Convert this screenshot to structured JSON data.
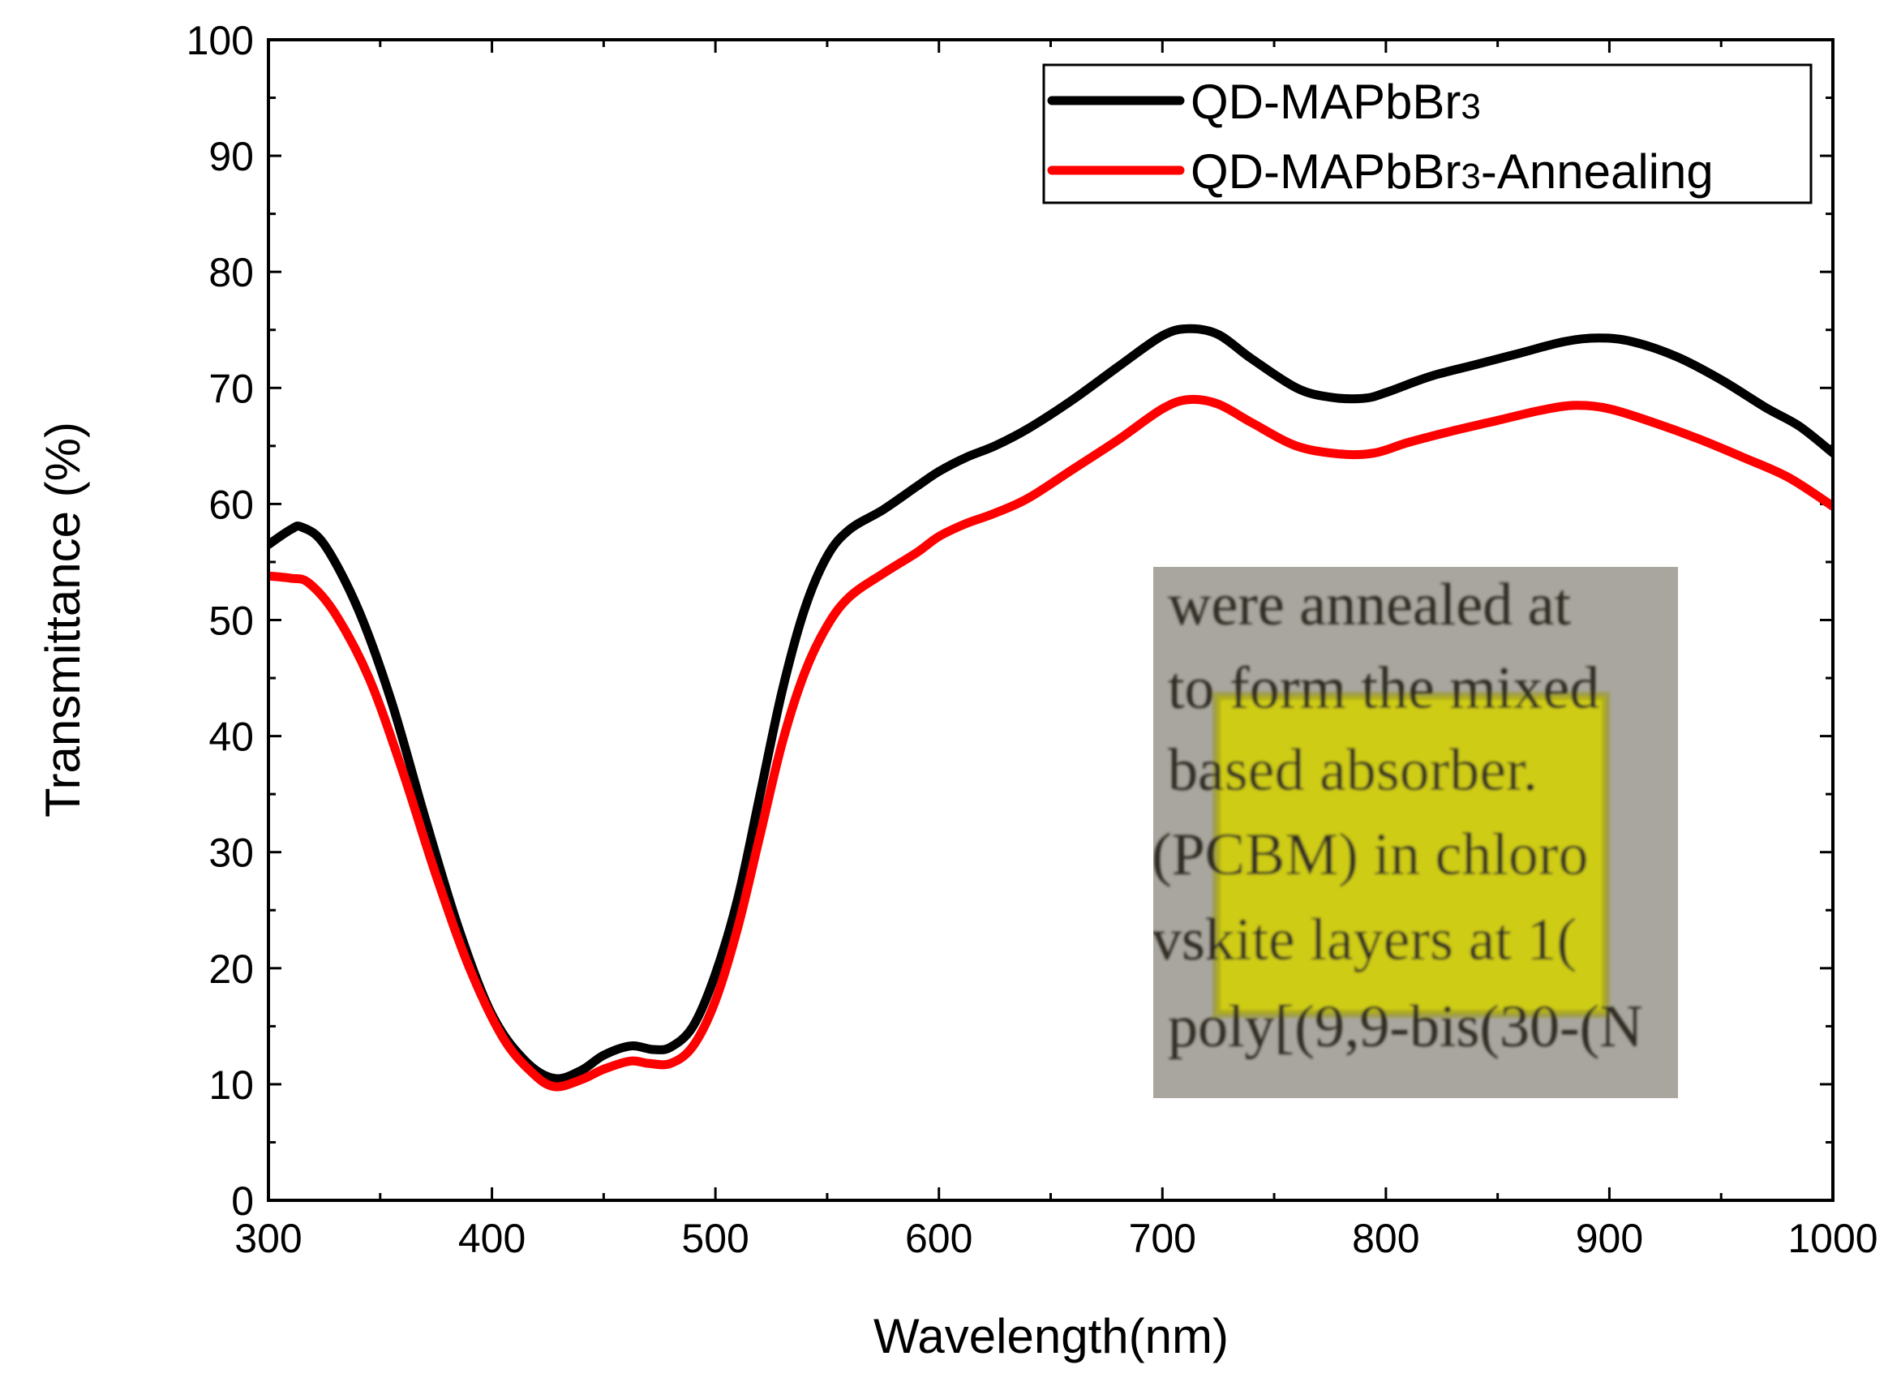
{
  "chart_data": {
    "type": "line",
    "title": "",
    "xlabel": "Wavelength(nm)",
    "ylabel": "Transmittance (%)",
    "xlim": [
      300,
      1000
    ],
    "ylim": [
      0,
      100
    ],
    "xticks": [
      300,
      400,
      500,
      600,
      700,
      800,
      900,
      1000
    ],
    "yticks": [
      0,
      10,
      20,
      30,
      40,
      50,
      60,
      70,
      80,
      90,
      100
    ],
    "legend_position": "top-right",
    "series": [
      {
        "name": "QD-MAPbBr3",
        "legend_main": "QD-MAPbBr",
        "legend_sub": "3",
        "legend_suffix": "",
        "color": "#000000",
        "points": [
          [
            300,
            56.5
          ],
          [
            310,
            57.8
          ],
          [
            315,
            58.0
          ],
          [
            325,
            56.5
          ],
          [
            340,
            51
          ],
          [
            355,
            43
          ],
          [
            370,
            33
          ],
          [
            385,
            23.5
          ],
          [
            400,
            16
          ],
          [
            415,
            12
          ],
          [
            428,
            10.5
          ],
          [
            440,
            11.2
          ],
          [
            450,
            12.5
          ],
          [
            462,
            13.3
          ],
          [
            472,
            13.0
          ],
          [
            480,
            13.2
          ],
          [
            490,
            15
          ],
          [
            500,
            19.5
          ],
          [
            510,
            26
          ],
          [
            520,
            35
          ],
          [
            530,
            44
          ],
          [
            540,
            51
          ],
          [
            550,
            55.5
          ],
          [
            560,
            57.8
          ],
          [
            575,
            59.5
          ],
          [
            590,
            61.5
          ],
          [
            600,
            62.8
          ],
          [
            612,
            64
          ],
          [
            625,
            65
          ],
          [
            640,
            66.5
          ],
          [
            660,
            69
          ],
          [
            680,
            71.8
          ],
          [
            700,
            74.5
          ],
          [
            712,
            75.1
          ],
          [
            725,
            74.6
          ],
          [
            740,
            72.5
          ],
          [
            760,
            70
          ],
          [
            775,
            69.2
          ],
          [
            790,
            69.1
          ],
          [
            800,
            69.6
          ],
          [
            820,
            71
          ],
          [
            840,
            72
          ],
          [
            860,
            73
          ],
          [
            880,
            74
          ],
          [
            895,
            74.3
          ],
          [
            910,
            74
          ],
          [
            930,
            72.7
          ],
          [
            950,
            70.7
          ],
          [
            970,
            68.3
          ],
          [
            985,
            66.7
          ],
          [
            1000,
            64.4
          ]
        ]
      },
      {
        "name": "QD-MAPbBr3-Annealing",
        "legend_main": "QD-MAPbBr",
        "legend_sub": "3",
        "legend_suffix": "-Annealing",
        "color": "#ff0000",
        "points": [
          [
            300,
            53.8
          ],
          [
            310,
            53.6
          ],
          [
            318,
            53.2
          ],
          [
            330,
            50.5
          ],
          [
            345,
            45
          ],
          [
            360,
            37
          ],
          [
            375,
            28
          ],
          [
            390,
            20
          ],
          [
            405,
            14
          ],
          [
            418,
            11
          ],
          [
            428,
            9.8
          ],
          [
            440,
            10.4
          ],
          [
            450,
            11.3
          ],
          [
            462,
            12
          ],
          [
            470,
            11.8
          ],
          [
            480,
            11.8
          ],
          [
            490,
            13.3
          ],
          [
            500,
            17.2
          ],
          [
            510,
            23.5
          ],
          [
            520,
            31.5
          ],
          [
            530,
            39.5
          ],
          [
            540,
            45.5
          ],
          [
            550,
            49.5
          ],
          [
            560,
            52
          ],
          [
            575,
            54
          ],
          [
            590,
            55.8
          ],
          [
            600,
            57.2
          ],
          [
            612,
            58.3
          ],
          [
            625,
            59.2
          ],
          [
            640,
            60.5
          ],
          [
            660,
            63
          ],
          [
            680,
            65.5
          ],
          [
            700,
            68.2
          ],
          [
            712,
            69.0
          ],
          [
            725,
            68.6
          ],
          [
            740,
            67
          ],
          [
            760,
            65
          ],
          [
            780,
            64.3
          ],
          [
            795,
            64.4
          ],
          [
            810,
            65.3
          ],
          [
            830,
            66.3
          ],
          [
            850,
            67.2
          ],
          [
            870,
            68.1
          ],
          [
            885,
            68.5
          ],
          [
            900,
            68.2
          ],
          [
            920,
            67
          ],
          [
            940,
            65.6
          ],
          [
            960,
            64
          ],
          [
            980,
            62.3
          ],
          [
            1000,
            59.8
          ]
        ]
      }
    ],
    "inset_photo": {
      "text_lines": [
        "were annealed at",
        "to form the mixed",
        "based  absorber.",
        "(PCBM)  in  chloro",
        "vskite  layers  at  1(",
        "poly[(9,9-bis(30-(N"
      ],
      "background_color": "#a3a09a",
      "film_color": "#cfcc14"
    }
  }
}
